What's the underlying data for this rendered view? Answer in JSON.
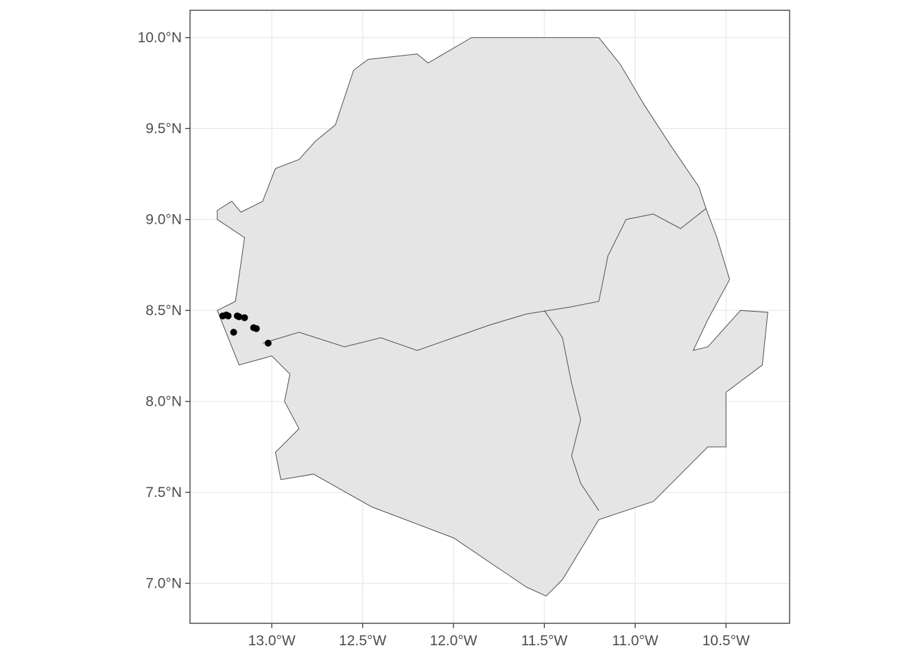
{
  "chart_data": {
    "type": "scatter",
    "title": "",
    "xlabel": "",
    "ylabel": "",
    "xlim": [
      -13.45,
      -10.15
    ],
    "ylim": [
      6.78,
      10.15
    ],
    "x_ticks": [
      {
        "value": -13.0,
        "label": "13.0°W"
      },
      {
        "value": -12.5,
        "label": "12.5°W"
      },
      {
        "value": -12.0,
        "label": "12.0°W"
      },
      {
        "value": -11.5,
        "label": "11.5°W"
      },
      {
        "value": -11.0,
        "label": "11.0°W"
      },
      {
        "value": -10.5,
        "label": "10.5°W"
      }
    ],
    "y_ticks": [
      {
        "value": 7.0,
        "label": "7.0°N"
      },
      {
        "value": 7.5,
        "label": "7.5°N"
      },
      {
        "value": 8.0,
        "label": "8.0°N"
      },
      {
        "value": 8.5,
        "label": "8.5°N"
      },
      {
        "value": 9.0,
        "label": "9.0°N"
      },
      {
        "value": 9.5,
        "label": "9.5°N"
      },
      {
        "value": 10.0,
        "label": "10.0°N"
      }
    ],
    "grid": true,
    "colors": {
      "land_fill": "#e5e5e5",
      "boundary": "#4d4d4d",
      "points": "#000000",
      "grid": "#ebebeb"
    },
    "points": [
      {
        "lon": -13.27,
        "lat": 8.47
      },
      {
        "lon": -13.25,
        "lat": 8.475
      },
      {
        "lon": -13.24,
        "lat": 8.47
      },
      {
        "lon": -13.19,
        "lat": 8.47
      },
      {
        "lon": -13.18,
        "lat": 8.465
      },
      {
        "lon": -13.15,
        "lat": 8.46
      },
      {
        "lon": -13.1,
        "lat": 8.405
      },
      {
        "lon": -13.085,
        "lat": 8.4
      },
      {
        "lon": -13.21,
        "lat": 8.38
      },
      {
        "lon": -13.02,
        "lat": 8.32
      }
    ],
    "outline": [
      [
        -13.3,
        9.05
      ],
      [
        -13.22,
        9.1
      ],
      [
        -13.17,
        9.04
      ],
      [
        -13.05,
        9.1
      ],
      [
        -12.98,
        9.28
      ],
      [
        -12.85,
        9.33
      ],
      [
        -12.76,
        9.43
      ],
      [
        -12.65,
        9.52
      ],
      [
        -12.55,
        9.82
      ],
      [
        -12.47,
        9.88
      ],
      [
        -12.2,
        9.91
      ],
      [
        -12.14,
        9.86
      ],
      [
        -11.9,
        10.0
      ],
      [
        -11.2,
        10.0
      ],
      [
        -11.08,
        9.85
      ],
      [
        -10.95,
        9.63
      ],
      [
        -10.8,
        9.4
      ],
      [
        -10.65,
        9.18
      ],
      [
        -10.61,
        9.06
      ],
      [
        -10.55,
        8.9
      ],
      [
        -10.48,
        8.67
      ],
      [
        -10.6,
        8.45
      ],
      [
        -10.68,
        8.28
      ],
      [
        -10.6,
        8.3
      ],
      [
        -10.42,
        8.5
      ],
      [
        -10.27,
        8.49
      ],
      [
        -10.3,
        8.2
      ],
      [
        -10.5,
        8.05
      ],
      [
        -10.5,
        7.75
      ],
      [
        -10.6,
        7.75
      ],
      [
        -10.9,
        7.45
      ],
      [
        -11.2,
        7.35
      ],
      [
        -11.4,
        7.02
      ],
      [
        -11.49,
        6.93
      ],
      [
        -11.6,
        6.98
      ],
      [
        -12.0,
        7.25
      ],
      [
        -12.45,
        7.42
      ],
      [
        -12.77,
        7.6
      ],
      [
        -12.95,
        7.57
      ],
      [
        -12.98,
        7.72
      ],
      [
        -12.85,
        7.85
      ],
      [
        -12.93,
        8.0
      ],
      [
        -12.9,
        8.15
      ],
      [
        -13.0,
        8.25
      ],
      [
        -13.18,
        8.2
      ],
      [
        -13.3,
        8.5
      ],
      [
        -13.2,
        8.55
      ],
      [
        -13.15,
        8.9
      ],
      [
        -13.3,
        9.0
      ]
    ],
    "borders": [
      [
        [
          -13.05,
          8.32
        ],
        [
          -12.85,
          8.38
        ],
        [
          -12.6,
          8.3
        ],
        [
          -12.4,
          8.35
        ],
        [
          -12.2,
          8.28
        ],
        [
          -12.0,
          8.35
        ],
        [
          -11.8,
          8.42
        ],
        [
          -11.6,
          8.48
        ],
        [
          -11.35,
          8.52
        ],
        [
          -11.2,
          8.55
        ],
        [
          -11.15,
          8.8
        ],
        [
          -11.05,
          9.0
        ],
        [
          -10.9,
          9.03
        ],
        [
          -10.75,
          8.95
        ],
        [
          -10.61,
          9.06
        ]
      ],
      [
        [
          -11.5,
          8.5
        ],
        [
          -11.4,
          8.35
        ],
        [
          -11.35,
          8.1
        ],
        [
          -11.3,
          7.9
        ],
        [
          -11.35,
          7.7
        ],
        [
          -11.3,
          7.55
        ],
        [
          -11.2,
          7.4
        ]
      ]
    ]
  }
}
